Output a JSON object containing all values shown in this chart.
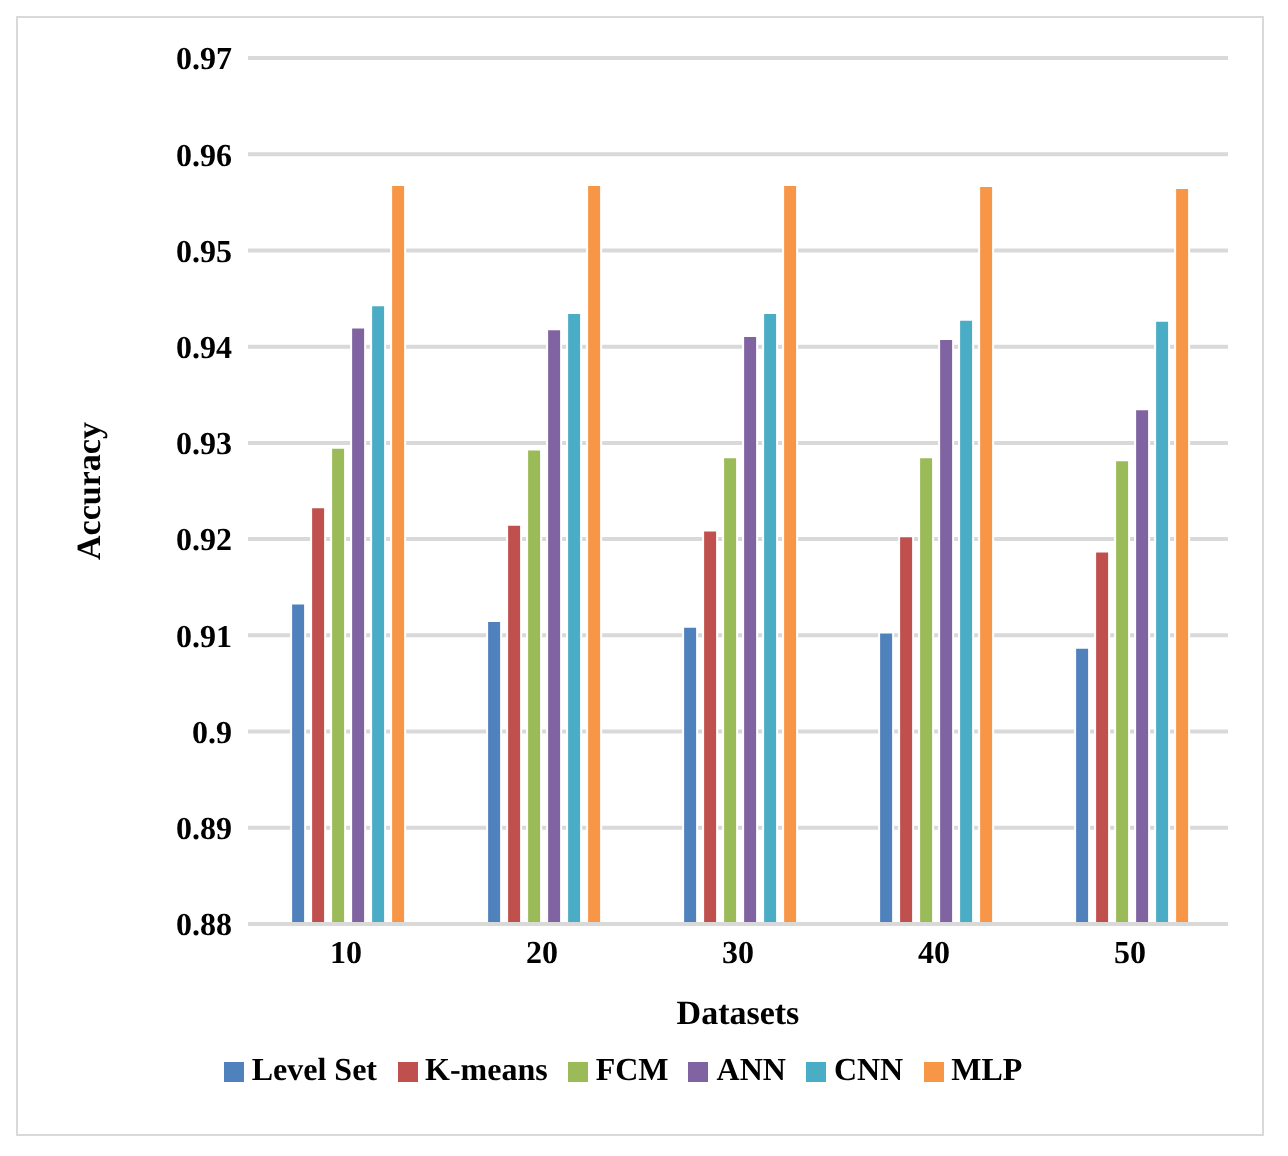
{
  "chart_data": {
    "type": "bar",
    "xlabel": "Datasets",
    "ylabel": "Accuracy",
    "categories": [
      "10",
      "20",
      "30",
      "40",
      "50"
    ],
    "series": [
      {
        "name": "Level Set",
        "color": "#4f81bd",
        "values": [
          0.9133,
          0.9115,
          0.9109,
          0.9103,
          0.9087
        ]
      },
      {
        "name": "K-means",
        "color": "#c0504d",
        "values": [
          0.9233,
          0.9215,
          0.9209,
          0.9203,
          0.9187
        ]
      },
      {
        "name": "FCM",
        "color": "#9bbb59",
        "values": [
          0.9295,
          0.9293,
          0.9285,
          0.9285,
          0.9282
        ]
      },
      {
        "name": "ANN",
        "color": "#8064a2",
        "values": [
          0.942,
          0.9418,
          0.9411,
          0.9408,
          0.9335
        ]
      },
      {
        "name": "CNN",
        "color": "#4bacc6",
        "values": [
          0.9443,
          0.9435,
          0.9435,
          0.9428,
          0.9427
        ]
      },
      {
        "name": "MLP",
        "color": "#f79646",
        "values": [
          0.9568,
          0.9568,
          0.9568,
          0.9567,
          0.9565
        ]
      }
    ],
    "ylim": [
      0.88,
      0.97
    ],
    "yticks": [
      0.88,
      0.89,
      0.9,
      0.91,
      0.92,
      0.93,
      0.94,
      0.95,
      0.96,
      0.97
    ],
    "grid": "y",
    "legend": "bottom"
  }
}
